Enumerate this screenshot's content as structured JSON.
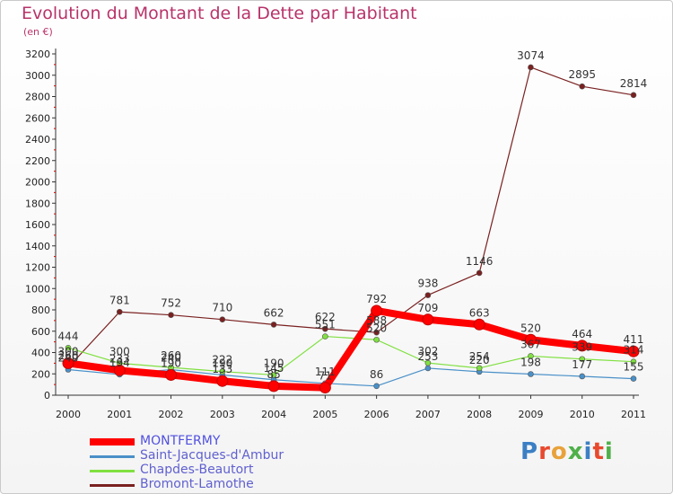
{
  "title": "Evolution du Montant de la Dette par Habitant",
  "subtitle": "(en €)",
  "logo": {
    "text": "Proxiti",
    "letter_colors": [
      "#3b7fc4",
      "#e8492e",
      "#e8a23a",
      "#4fb04a",
      "#3b7fc4",
      "#e8492e",
      "#4fb04a"
    ]
  },
  "chart_data": {
    "type": "line",
    "title": "Evolution du Montant de la Dette par Habitant",
    "subtitle": "(en €)",
    "x": [
      "2000",
      "2001",
      "2002",
      "2003",
      "2004",
      "2005",
      "2006",
      "2007",
      "2008",
      "2009",
      "2010",
      "2011"
    ],
    "ylim": [
      0,
      3200
    ],
    "yticks": [
      "0",
      "200",
      "400",
      "600",
      "800",
      "1000",
      "1200",
      "1400",
      "1600",
      "1800",
      "2000",
      "2200",
      "2400",
      "2600",
      "2800",
      "3000",
      "3200"
    ],
    "grid": false,
    "legend_position": "bottom-left",
    "series": [
      {
        "name": "MONTFERMY",
        "color": "#ff0000",
        "values": [
          300,
          233,
          190,
          133,
          85,
          71,
          792,
          709,
          663,
          520,
          464,
          411
        ],
        "labels": [
          "300",
          "233",
          "190",
          "133",
          "85",
          "71",
          "792",
          "709",
          "663",
          "520",
          "464",
          "411"
        ]
      },
      {
        "name": "Saint-Jacques-d'Ambur",
        "color": "#4a90c8",
        "values": [
          240,
          194,
          240,
          190,
          145,
          111,
          86,
          253,
          220,
          198,
          177,
          155
        ],
        "labels": [
          "240",
          "194",
          "240",
          "190",
          "145",
          "111",
          "86",
          "253",
          "220",
          "198",
          "177",
          "155"
        ]
      },
      {
        "name": "Chapdes-Beautort",
        "color": "#80e040",
        "values": [
          444,
          300,
          260,
          222,
          190,
          551,
          520,
          302,
          254,
          367,
          339,
          314
        ],
        "labels": [
          "444",
          "300",
          "260",
          "222",
          "190",
          "551",
          "520",
          "302",
          "254",
          "367",
          "339",
          "314"
        ]
      },
      {
        "name": "Bromont-Lamothe",
        "color": "#7a2020",
        "values": [
          260,
          781,
          752,
          710,
          662,
          622,
          588,
          938,
          1146,
          3074,
          2895,
          2814
        ],
        "labels": [
          "260",
          "781",
          "752",
          "710",
          "662",
          "622",
          "588",
          "938",
          "1146",
          "3074",
          "2895",
          "2814"
        ]
      }
    ]
  }
}
